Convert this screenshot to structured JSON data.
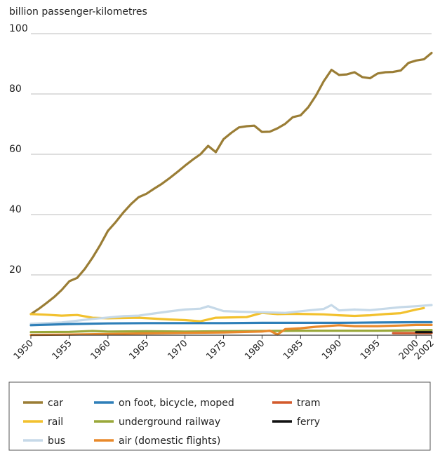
{
  "chart_data": {
    "type": "line",
    "ylabel": "billion passenger-kilometres",
    "ylim": [
      0,
      100
    ],
    "yticks": [
      20,
      40,
      60,
      80,
      100
    ],
    "xlim": [
      1950,
      2002
    ],
    "xticks": [
      1950,
      1955,
      1960,
      1965,
      1970,
      1975,
      1980,
      1985,
      1990,
      1995,
      2000,
      2002
    ],
    "grid": "horizontal",
    "legend_position": "bottom",
    "series": [
      {
        "name": "car",
        "color": "#9a7d35",
        "x": [
          1950,
          1951,
          1952,
          1953,
          1954,
          1955,
          1956,
          1957,
          1958,
          1959,
          1960,
          1961,
          1962,
          1963,
          1964,
          1965,
          1966,
          1967,
          1968,
          1969,
          1970,
          1971,
          1972,
          1973,
          1974,
          1975,
          1976,
          1977,
          1978,
          1979,
          1980,
          1981,
          1982,
          1983,
          1984,
          1985,
          1986,
          1987,
          1988,
          1989,
          1990,
          1991,
          1992,
          1993,
          1994,
          1995,
          1996,
          1997,
          1998,
          1999,
          2000,
          2001,
          2002
        ],
        "values": [
          7.0,
          8.7,
          10.6,
          12.6,
          15.0,
          17.9,
          19.0,
          22.0,
          25.7,
          29.9,
          34.6,
          37.5,
          40.7,
          43.5,
          45.8,
          46.9,
          48.6,
          50.2,
          52.1,
          54.1,
          56.2,
          58.2,
          60.0,
          62.8,
          60.7,
          65.0,
          67.1,
          68.9,
          69.3,
          69.5,
          67.4,
          67.5,
          68.6,
          70.1,
          72.3,
          72.9,
          75.6,
          79.5,
          84.2,
          88.0,
          86.3,
          86.5,
          87.2,
          85.6,
          85.2,
          86.8,
          87.2,
          87.3,
          87.8,
          90.3,
          91.1,
          91.5,
          93.6
        ]
      },
      {
        "name": "rail",
        "color": "#f2c12e",
        "x": [
          1950,
          1952,
          1954,
          1956,
          1958,
          1960,
          1962,
          1964,
          1966,
          1968,
          1970,
          1972,
          1974,
          1976,
          1978,
          1980,
          1982,
          1984,
          1986,
          1988,
          1990,
          1992,
          1994,
          1996,
          1998,
          2000,
          2001
        ],
        "values": [
          7.0,
          6.8,
          6.5,
          6.7,
          5.8,
          5.6,
          5.7,
          5.8,
          5.5,
          5.2,
          5.0,
          4.6,
          5.8,
          5.9,
          6.0,
          7.4,
          7.0,
          7.1,
          7.0,
          6.9,
          6.6,
          6.4,
          6.6,
          7.0,
          7.3,
          8.5,
          9.0
        ]
      },
      {
        "name": "bus",
        "color": "#c6d9e8",
        "x": [
          1950,
          1954,
          1958,
          1962,
          1964,
          1966,
          1968,
          1970,
          1972,
          1973,
          1975,
          1977,
          1980,
          1983,
          1986,
          1988,
          1989,
          1990,
          1992,
          1994,
          1996,
          1998,
          2000,
          2002
        ],
        "values": [
          3.8,
          4.2,
          5.4,
          6.3,
          6.5,
          7.2,
          7.9,
          8.5,
          8.8,
          9.6,
          8.0,
          7.8,
          7.6,
          7.4,
          8.2,
          8.7,
          10.0,
          8.2,
          8.5,
          8.3,
          8.8,
          9.3,
          9.6,
          10.0
        ]
      },
      {
        "name": "on foot, bicycle, moped",
        "color": "#2e7fb8",
        "x": [
          1950,
          1955,
          1960,
          1965,
          1970,
          1975,
          1980,
          1985,
          1990,
          1995,
          2000,
          2002
        ],
        "values": [
          3.3,
          3.7,
          3.9,
          4.0,
          4.0,
          4.0,
          4.1,
          4.1,
          4.1,
          4.2,
          4.3,
          4.3
        ]
      },
      {
        "name": "underground railway",
        "color": "#9aa83a",
        "x": [
          1950,
          1955,
          1958,
          1960,
          1965,
          1970,
          1975,
          1980,
          1985,
          1990,
          1995,
          2000,
          2002
        ],
        "values": [
          1.0,
          1.1,
          1.4,
          1.2,
          1.3,
          1.2,
          1.3,
          1.4,
          1.5,
          1.5,
          1.5,
          1.6,
          1.7
        ]
      },
      {
        "name": "air (domestic flights)",
        "color": "#e8892a",
        "x": [
          1950,
          1955,
          1960,
          1965,
          1970,
          1975,
          1980,
          1981,
          1982,
          1983,
          1985,
          1987,
          1990,
          1992,
          1995,
          1998,
          2000,
          2002
        ],
        "values": [
          0.1,
          0.2,
          0.4,
          0.6,
          0.8,
          0.9,
          1.2,
          1.5,
          0.2,
          2.0,
          2.3,
          2.8,
          3.3,
          3.0,
          3.0,
          3.2,
          3.4,
          3.4
        ]
      },
      {
        "name": "tram",
        "color": "#d35a2c",
        "x": [
          1997,
          1998,
          1999,
          2000,
          2001,
          2002
        ],
        "values": [
          0.7,
          0.7,
          0.7,
          0.7,
          0.7,
          0.7
        ]
      },
      {
        "name": "ferry",
        "color": "#111111",
        "x": [
          2000,
          2001,
          2002
        ],
        "values": [
          1.0,
          1.0,
          1.0
        ]
      }
    ]
  }
}
